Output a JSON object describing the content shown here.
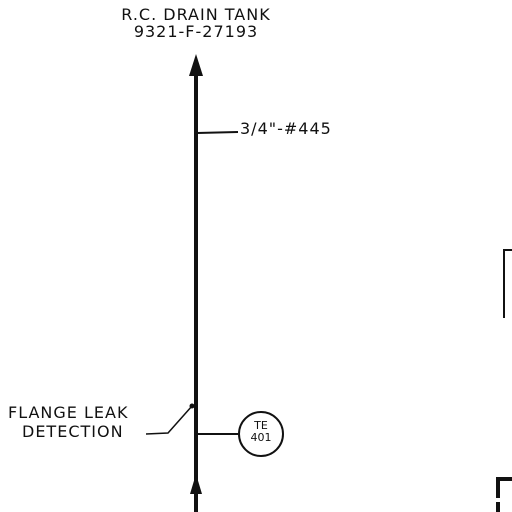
{
  "destination": {
    "line1": "R.C. DRAIN TANK",
    "line2": "9321-F-27193"
  },
  "pipe": {
    "callout": "3/4\"-#445",
    "flow_direction": "up"
  },
  "flange_note": {
    "line1": "FLANGE LEAK",
    "line2": "DETECTION"
  },
  "instrument": {
    "tag": "TE",
    "number": "401"
  },
  "colors": {
    "line": "#111111",
    "background": "#ffffff"
  }
}
